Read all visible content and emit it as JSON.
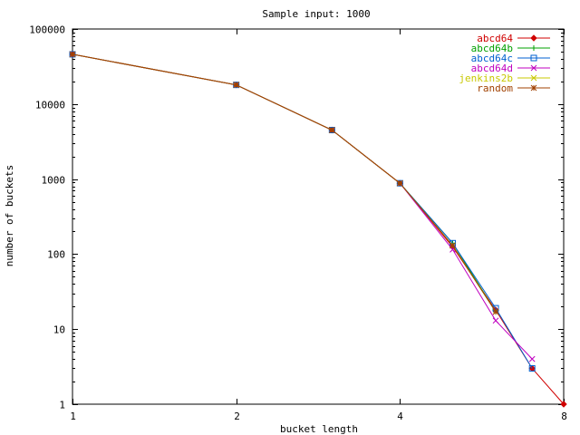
{
  "chart_data": {
    "type": "line",
    "title": "Sample input: 1000",
    "xlabel": "bucket length",
    "ylabel": "number of buckets",
    "x_scale": "log2",
    "y_scale": "log10",
    "xlim": [
      1,
      8
    ],
    "ylim": [
      1,
      100000
    ],
    "x_ticks": [
      1,
      2,
      4,
      8
    ],
    "x_tick_labels": [
      "1",
      "2",
      "4",
      "8"
    ],
    "y_ticks": [
      1,
      10,
      100,
      1000,
      10000,
      100000
    ],
    "y_tick_labels": [
      "1",
      "10",
      "100",
      "1000",
      "10000",
      "100000"
    ],
    "grid": false,
    "legend_position": "top-right",
    "series": [
      {
        "name": "abcd64",
        "color": "#d00000",
        "marker": "diamond",
        "points": [
          [
            1,
            46000
          ],
          [
            2,
            18000
          ],
          [
            3,
            4500
          ],
          [
            4,
            880
          ],
          [
            5,
            125
          ],
          [
            6,
            18
          ],
          [
            7,
            3
          ],
          [
            8,
            1
          ]
        ]
      },
      {
        "name": "abcd64b",
        "color": "#00a000",
        "marker": "plus",
        "points": [
          [
            1,
            46000
          ],
          [
            2,
            18000
          ],
          [
            3,
            4500
          ],
          [
            4,
            880
          ],
          [
            5,
            140
          ],
          [
            6,
            17
          ]
        ]
      },
      {
        "name": "abcd64c",
        "color": "#0060d0",
        "marker": "square",
        "points": [
          [
            1,
            46000
          ],
          [
            2,
            18000
          ],
          [
            3,
            4500
          ],
          [
            4,
            880
          ],
          [
            5,
            140
          ],
          [
            6,
            19
          ],
          [
            7,
            3
          ]
        ]
      },
      {
        "name": "abcd64d",
        "color": "#c000c0",
        "marker": "x",
        "points": [
          [
            1,
            46000
          ],
          [
            2,
            18000
          ],
          [
            3,
            4500
          ],
          [
            4,
            880
          ],
          [
            5,
            115
          ],
          [
            6,
            13
          ],
          [
            7,
            4
          ]
        ]
      },
      {
        "name": "jenkins2b",
        "color": "#c8c800",
        "marker": "x",
        "points": [
          [
            1,
            46000
          ],
          [
            2,
            18000
          ],
          [
            3,
            4500
          ],
          [
            4,
            880
          ],
          [
            5,
            130
          ],
          [
            6,
            17
          ]
        ]
      },
      {
        "name": "random",
        "color": "#a04000",
        "marker": "star",
        "points": [
          [
            1,
            46000
          ],
          [
            2,
            18000
          ],
          [
            3,
            4500
          ],
          [
            4,
            880
          ],
          [
            5,
            130
          ],
          [
            6,
            17
          ]
        ]
      }
    ]
  }
}
